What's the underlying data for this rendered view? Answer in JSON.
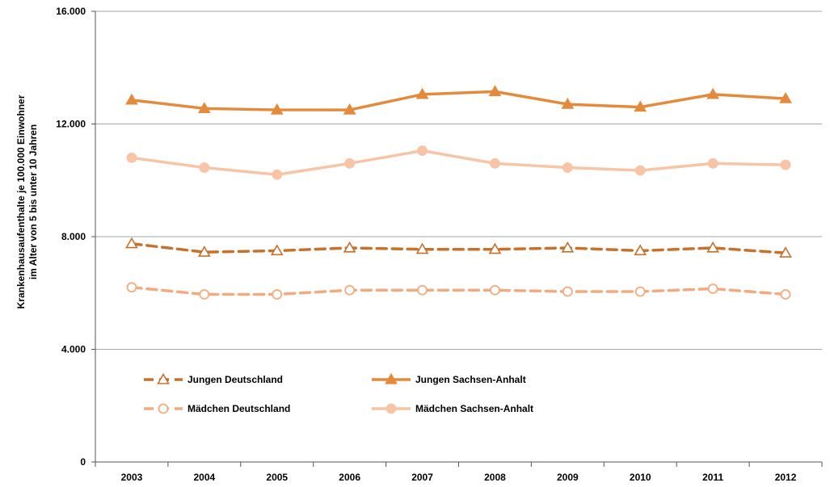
{
  "chart_data": {
    "type": "line",
    "title": "",
    "ylabel_lines": [
      "Krankenhausaufenthalte   je 100.000 Einwohner",
      "im Alter von 5 bis unter 10 Jahren"
    ],
    "xlabel": "",
    "ylim": [
      0,
      16000
    ],
    "yticks": [
      0,
      4000,
      8000,
      12000,
      16000
    ],
    "ytick_labels": [
      "0",
      "4.000",
      "8.000",
      "12.000",
      "16.000"
    ],
    "categories": [
      "2003",
      "2004",
      "2005",
      "2006",
      "2007",
      "2008",
      "2009",
      "2010",
      "2011",
      "2012"
    ],
    "grid": "horizontal",
    "legend_placement": "bottom-left inside plot",
    "series": [
      {
        "name": "Jungen Deutschland",
        "color": "#c8712b",
        "dash": true,
        "marker": "triangle-open",
        "values": [
          7750,
          7450,
          7500,
          7600,
          7550,
          7550,
          7600,
          7500,
          7600,
          7420
        ]
      },
      {
        "name": "Jungen Sachsen-Anhalt",
        "color": "#e38a3c",
        "dash": false,
        "marker": "triangle-filled",
        "values": [
          12850,
          12550,
          12500,
          12500,
          13050,
          13150,
          12700,
          12600,
          13050,
          12900
        ]
      },
      {
        "name": "Mädchen Deutschland",
        "color": "#f3aa7e",
        "dash": true,
        "marker": "circle-open",
        "values": [
          6200,
          5950,
          5950,
          6100,
          6100,
          6100,
          6050,
          6050,
          6150,
          5950
        ]
      },
      {
        "name": "Mädchen Sachsen-Anhalt",
        "color": "#f7c4a5",
        "dash": false,
        "marker": "circle-filled",
        "values": [
          10800,
          10450,
          10200,
          10600,
          11050,
          10600,
          10450,
          10350,
          10600,
          10550
        ]
      }
    ]
  }
}
